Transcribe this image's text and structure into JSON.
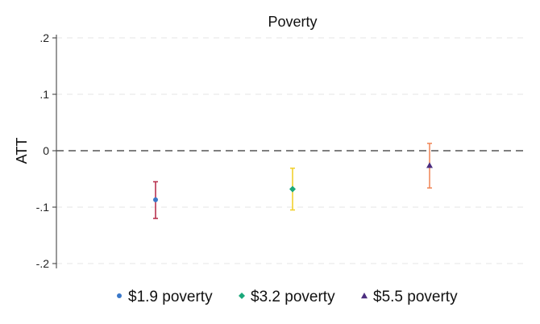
{
  "chart_data": {
    "type": "scatter",
    "title": "Poverty",
    "xlabel": "",
    "ylabel": "ATT",
    "ylim": [
      -0.2,
      0.2
    ],
    "yticks": [
      0.2,
      0.1,
      0,
      -0.1,
      -0.2
    ],
    "ytick_labels": [
      ".2",
      ".1",
      "0",
      "-.1",
      "-.2"
    ],
    "reference_line": {
      "y": 0,
      "style": "dashed"
    },
    "grid": true,
    "legend_position": "bottom",
    "series": [
      {
        "name": "$1.9 poverty",
        "marker": "circle",
        "color": "#3a78c9",
        "ci_color": "#b8324f",
        "x": 1,
        "estimate": -0.087,
        "ci_low": -0.12,
        "ci_high": -0.055
      },
      {
        "name": "$3.2 poverty",
        "marker": "diamond",
        "color": "#1aa87a",
        "ci_color": "#f2d12e",
        "x": 2,
        "estimate": -0.068,
        "ci_low": -0.105,
        "ci_high": -0.031
      },
      {
        "name": "$5.5 poverty",
        "marker": "triangle",
        "color": "#4b2d7f",
        "ci_color": "#f08a5d",
        "x": 3,
        "estimate": -0.026,
        "ci_low": -0.066,
        "ci_high": 0.013
      }
    ]
  }
}
